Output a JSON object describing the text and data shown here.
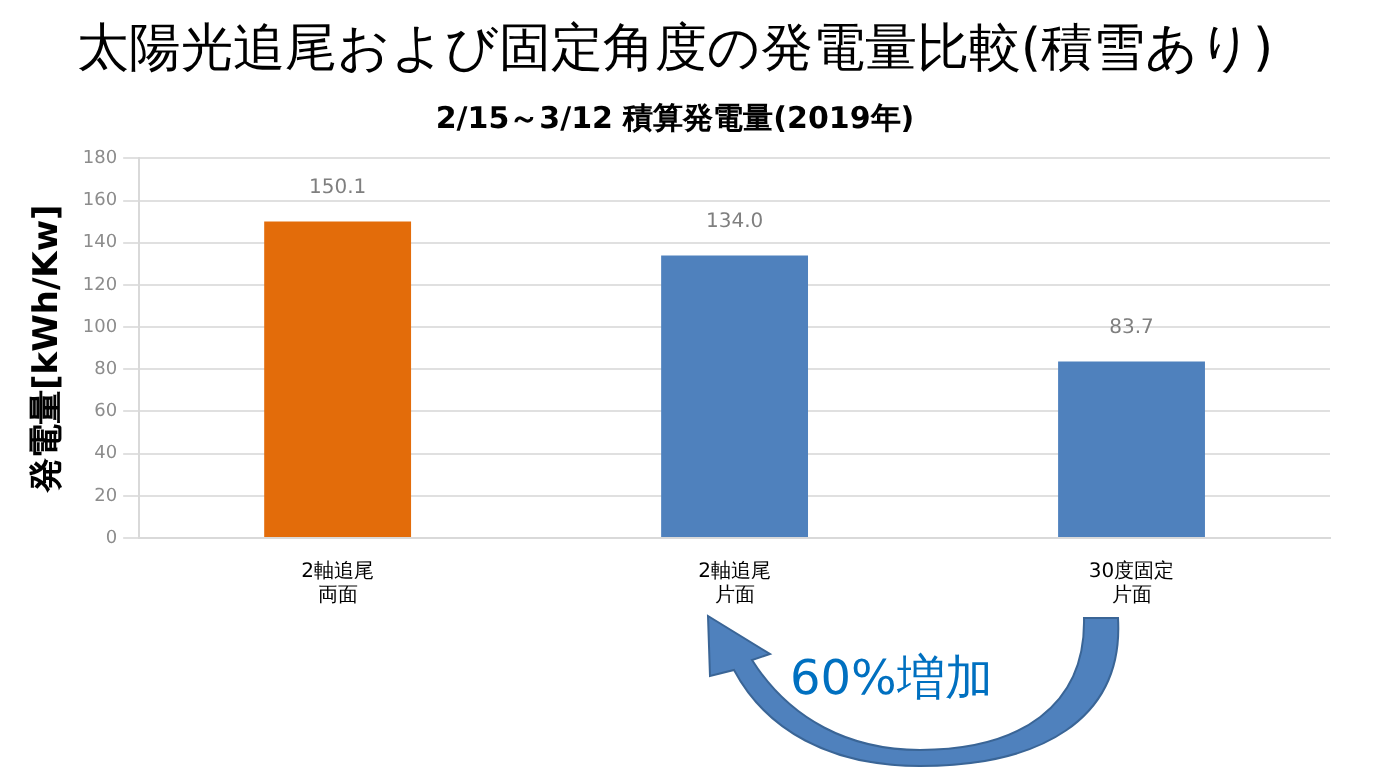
{
  "chart_data": {
    "type": "bar",
    "title": "太陽光追尾および固定角度の発電量比較(積雪あり)",
    "subtitle": "2/15～3/12 積算発電量(2019年)",
    "ylabel": "発電量[kWh/Kw]",
    "categories": [
      "2軸追尾両面",
      "2軸追尾片面",
      "30度固定片面"
    ],
    "values": [
      150.1,
      134.0,
      83.7
    ],
    "colors": [
      "#e36c0a",
      "#4f81bd",
      "#4f81bd"
    ],
    "value_labels": [
      "150.1",
      "134.0",
      "83.7"
    ],
    "ylim": [
      0,
      180
    ],
    "yticks": [
      0,
      20,
      40,
      60,
      80,
      100,
      120,
      140,
      160,
      180
    ],
    "grid": "y",
    "legend": false,
    "annotations": [
      "60%増加"
    ]
  }
}
